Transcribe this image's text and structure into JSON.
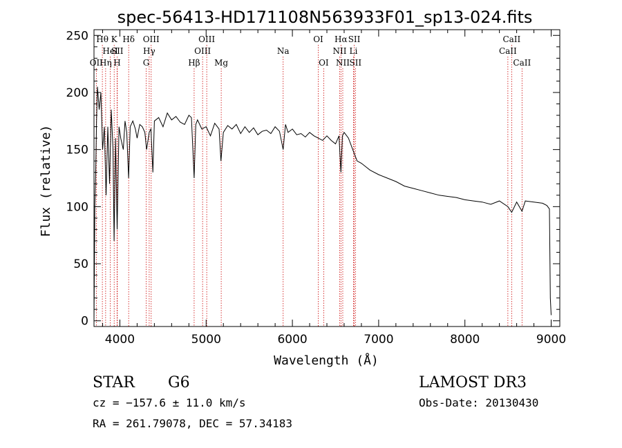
{
  "chart_data": {
    "type": "line",
    "title": "spec-56413-HD171108N563933F01_sp13-024.fits",
    "xlabel": "Wavelength (Å)",
    "ylabel": "Flux (relative)",
    "xlim": [
      3700,
      9100
    ],
    "ylim": [
      -5,
      255
    ],
    "xticks": [
      4000,
      5000,
      6000,
      7000,
      8000,
      9000
    ],
    "yticks": [
      0,
      50,
      100,
      150,
      200,
      250
    ],
    "series": [
      {
        "name": "spectrum",
        "x": [
          3700,
          3710,
          3720,
          3730,
          3740,
          3760,
          3780,
          3800,
          3820,
          3840,
          3860,
          3880,
          3900,
          3920,
          3933,
          3950,
          3968,
          3990,
          4010,
          4040,
          4060,
          4080,
          4101,
          4120,
          4150,
          4180,
          4200,
          4230,
          4260,
          4290,
          4310,
          4340,
          4360,
          4383,
          4400,
          4450,
          4500,
          4550,
          4600,
          4650,
          4700,
          4750,
          4800,
          4830,
          4861,
          4880,
          4900,
          4950,
          5000,
          5050,
          5100,
          5150,
          5172,
          5200,
          5250,
          5300,
          5350,
          5400,
          5450,
          5500,
          5550,
          5600,
          5650,
          5700,
          5750,
          5800,
          5850,
          5893,
          5920,
          5950,
          6000,
          6050,
          6100,
          6150,
          6200,
          6250,
          6300,
          6350,
          6400,
          6450,
          6500,
          6540,
          6563,
          6580,
          6600,
          6650,
          6700,
          6750,
          6800,
          6850,
          6900,
          7000,
          7100,
          7200,
          7300,
          7400,
          7500,
          7600,
          7700,
          7800,
          7900,
          8000,
          8100,
          8200,
          8300,
          8400,
          8498,
          8542,
          8600,
          8662,
          8700,
          8800,
          8900,
          8950,
          8980,
          8990,
          9000
        ],
        "values": [
          0,
          100,
          130,
          175,
          205,
          185,
          200,
          150,
          170,
          110,
          170,
          120,
          185,
          150,
          70,
          160,
          80,
          170,
          160,
          150,
          175,
          165,
          125,
          170,
          175,
          168,
          160,
          172,
          170,
          165,
          150,
          165,
          168,
          130,
          175,
          178,
          170,
          182,
          176,
          179,
          174,
          172,
          180,
          178,
          125,
          172,
          176,
          168,
          170,
          162,
          173,
          168,
          140,
          165,
          171,
          168,
          172,
          164,
          170,
          165,
          169,
          163,
          166,
          167,
          164,
          170,
          166,
          150,
          172,
          165,
          168,
          163,
          164,
          161,
          165,
          162,
          160,
          158,
          162,
          158,
          155,
          162,
          130,
          162,
          165,
          160,
          150,
          140,
          138,
          135,
          132,
          128,
          125,
          122,
          118,
          116,
          114,
          112,
          110,
          109,
          108,
          106,
          105,
          104,
          102,
          105,
          100,
          95,
          104,
          96,
          105,
          104,
          103,
          101,
          98,
          20,
          5
        ]
      }
    ],
    "lines": [
      {
        "label": "OII",
        "wave": 3727,
        "row": 3
      },
      {
        "label": "Hθ",
        "wave": 3797,
        "row": 1
      },
      {
        "label": "Hη",
        "wave": 3835,
        "row": 3
      },
      {
        "label": "HeI",
        "wave": 3889,
        "row": 2
      },
      {
        "label": "K",
        "wave": 3934,
        "row": 1
      },
      {
        "label": "SII",
        "wave": 3970,
        "row": 2
      },
      {
        "label": "H",
        "wave": 3968,
        "row": 3
      },
      {
        "label": "Hδ",
        "wave": 4102,
        "row": 1
      },
      {
        "label": "OIII",
        "wave": 4363,
        "row": 1
      },
      {
        "label": "Hγ",
        "wave": 4340,
        "row": 2
      },
      {
        "label": "G",
        "wave": 4305,
        "row": 3
      },
      {
        "label": "Hβ",
        "wave": 4861,
        "row": 3
      },
      {
        "label": "OIII",
        "wave": 5007,
        "row": 1
      },
      {
        "label": "OIII",
        "wave": 4959,
        "row": 2
      },
      {
        "label": "Mg",
        "wave": 5175,
        "row": 3
      },
      {
        "label": "Na",
        "wave": 5893,
        "row": 2
      },
      {
        "label": "OI",
        "wave": 6300,
        "row": 1
      },
      {
        "label": "OI",
        "wave": 6363,
        "row": 3
      },
      {
        "label": "Hα",
        "wave": 6563,
        "row": 1
      },
      {
        "label": "SII",
        "wave": 6717,
        "row": 1
      },
      {
        "label": "NII",
        "wave": 6548,
        "row": 2
      },
      {
        "label": "Li",
        "wave": 6708,
        "row": 2
      },
      {
        "label": "NII",
        "wave": 6584,
        "row": 3
      },
      {
        "label": "SII",
        "wave": 6731,
        "row": 3
      },
      {
        "label": "CaII",
        "wave": 8542,
        "row": 1
      },
      {
        "label": "CaII",
        "wave": 8498,
        "row": 2
      },
      {
        "label": "CaII",
        "wave": 8662,
        "row": 3
      }
    ]
  },
  "info": {
    "object_class": "STAR",
    "subclass": "G6",
    "survey": "LAMOST DR3",
    "cz": "cz = −157.6 ± 11.0 km/s",
    "obs_date": "Obs-Date: 20130430",
    "radec": "RA = 261.79078, DEC =  57.34183"
  }
}
